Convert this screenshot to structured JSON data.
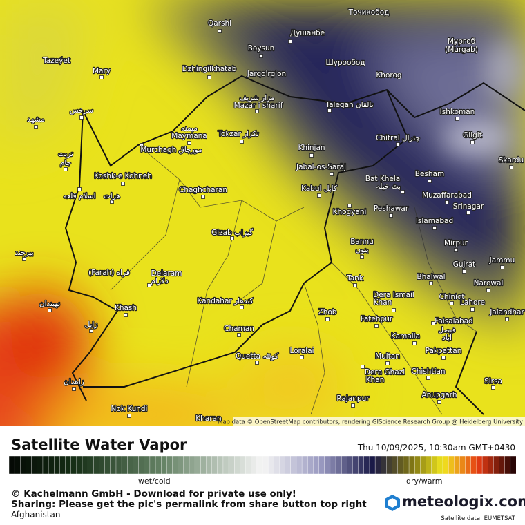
{
  "map": {
    "title": "Satellite Water Vapor",
    "datetime": "Thu 10/09/2025, 10:30am GMT+0430",
    "legend_left": "wet/cold",
    "legend_right": "dry/warm",
    "copyright": "© Kachelmann GmbH - Download for private use only!",
    "sharing": "Sharing: Please get the pic's permalink from share button top right",
    "region": "Afghanistan",
    "brand": "meteologix.com",
    "source": "Satellite data: EUMETSAT",
    "attribution": "Map data © OpenStreetMap contributors, rendering GIScience Research Group @ Heidelberg University",
    "labels": [
      "Qarshi",
      "Boysun",
      "Душанбе",
      "Точикобод",
      "Мургоб",
      "(Murgab)",
      "Tazeýet",
      "Mary",
      "Dzhingilkhatab",
      "Jarqo'rg'on",
      "Шурообод",
      "Khorog",
      "مزار شریف",
      "Mazar i sharif",
      "Taleqan تالقان",
      "Ishkoman",
      "Gilgit",
      "سرخس",
      "مشهد",
      "میمنه",
      "Maymana",
      "Tokzar تکزار",
      "Chitral چترال",
      "Murchagh مورچاق",
      "Khinjan",
      "Skardu",
      "تربت",
      "جام",
      "Jabal-os-Sarāj",
      "Bat Khela",
      "بٹ خیلہ",
      "Besham",
      "Koshk-e Kohneh",
      "Kabul کابل",
      "Chaghcharan",
      "Muzaffarabad",
      "اسلام قلعه",
      "هرات",
      "Peshawar",
      "Khogyani",
      "Srinagar",
      "Islamabad",
      "Gizab گیزاب",
      "Bannu",
      "بنوں",
      "Mirpur",
      "بیرجند",
      "Gujrat",
      "Jammu",
      "(Farah) فراه",
      "Delaram",
      "دلارام",
      "Bhalwal",
      "Tank",
      "Narowal",
      "Dera Ismail",
      "Khan",
      "Chiniot",
      "Kandahar کندهار",
      "Lahore",
      "نهبندان",
      "Khash",
      "Zhob",
      "Jalandhar",
      "Fatehpur",
      "Faisalabad",
      "فیصل",
      "آباد",
      "زابل",
      "Chaman",
      "Kamalia",
      "Quetta کوئٹہ",
      "Loralai",
      "Pakpattan",
      "Multan",
      "Dera Ghazi",
      "Khan",
      "Chishtian",
      "زاهدان",
      "Sirsa",
      "Anupgarh",
      "Rajanpur",
      "Nok Kundi",
      "Kharan"
    ]
  }
}
